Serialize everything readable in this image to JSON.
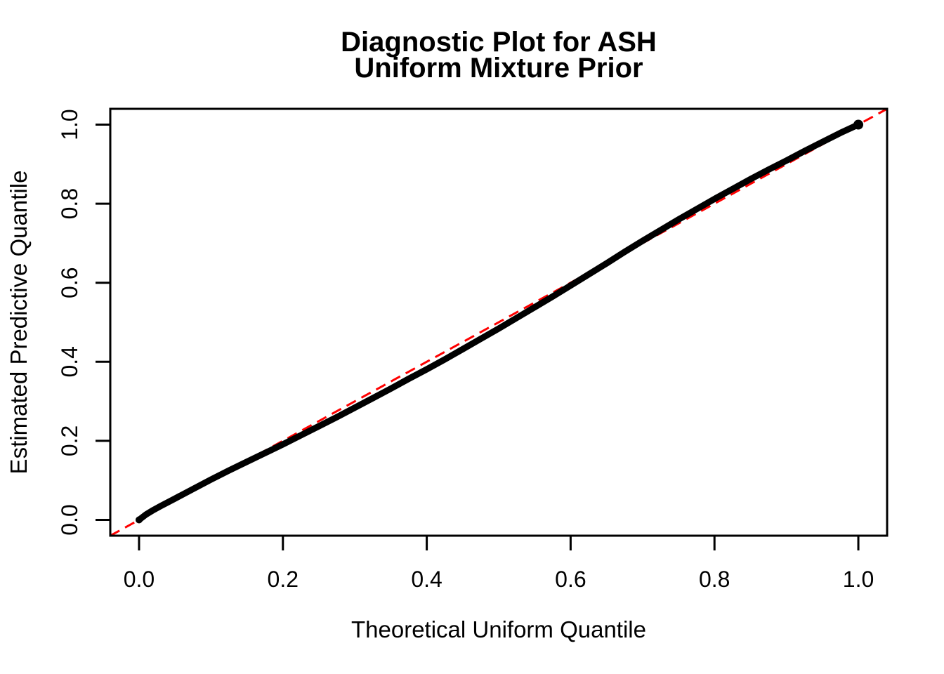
{
  "chart_data": {
    "type": "line",
    "title": "Diagnostic Plot for ASH\nUniform Mixture Prior",
    "title_lines": [
      "Diagnostic Plot for ASH",
      "Uniform Mixture Prior"
    ],
    "xlabel": "Theoretical Uniform Quantile",
    "ylabel": "Estimated Predictive Quantile",
    "xlim": [
      -0.04,
      1.04
    ],
    "ylim": [
      -0.04,
      1.04
    ],
    "grid": false,
    "legend": "none",
    "x_ticks": [
      0.0,
      0.2,
      0.4,
      0.6,
      0.8,
      1.0
    ],
    "x_tick_labels": [
      "0.0",
      "0.2",
      "0.4",
      "0.6",
      "0.8",
      "1.0"
    ],
    "y_ticks": [
      0.0,
      0.2,
      0.4,
      0.6,
      0.8,
      1.0
    ],
    "y_tick_labels": [
      "0.0",
      "0.2",
      "0.4",
      "0.6",
      "0.8",
      "1.0"
    ],
    "series": [
      {
        "name": "estimated-predictive-quantile-curve",
        "color": "#000000",
        "style": "thick-solid",
        "x": [
          0.0,
          0.01,
          0.02,
          0.03,
          0.05,
          0.075,
          0.1,
          0.125,
          0.15,
          0.175,
          0.2,
          0.225,
          0.25,
          0.275,
          0.3,
          0.325,
          0.35,
          0.375,
          0.4,
          0.425,
          0.45,
          0.475,
          0.5,
          0.525,
          0.55,
          0.575,
          0.6,
          0.625,
          0.65,
          0.675,
          0.7,
          0.725,
          0.75,
          0.775,
          0.8,
          0.825,
          0.85,
          0.875,
          0.9,
          0.925,
          0.95,
          0.975,
          1.0
        ],
        "y": [
          0.0,
          0.014,
          0.025,
          0.035,
          0.054,
          0.078,
          0.102,
          0.125,
          0.147,
          0.169,
          0.191,
          0.214,
          0.237,
          0.26,
          0.284,
          0.308,
          0.332,
          0.357,
          0.381,
          0.406,
          0.432,
          0.458,
          0.484,
          0.511,
          0.538,
          0.565,
          0.593,
          0.621,
          0.649,
          0.678,
          0.706,
          0.733,
          0.76,
          0.786,
          0.812,
          0.837,
          0.862,
          0.886,
          0.909,
          0.933,
          0.956,
          0.979,
          1.0
        ]
      }
    ],
    "ref_line": {
      "name": "identity-line-y-equals-x",
      "color": "#ff0000",
      "style": "dashed",
      "x": [
        -0.04,
        1.04
      ],
      "y": [
        -0.04,
        1.04
      ]
    },
    "colors": {
      "curve": "#000000",
      "reference": "#ff0000",
      "axis": "#000000",
      "background": "#ffffff"
    }
  }
}
